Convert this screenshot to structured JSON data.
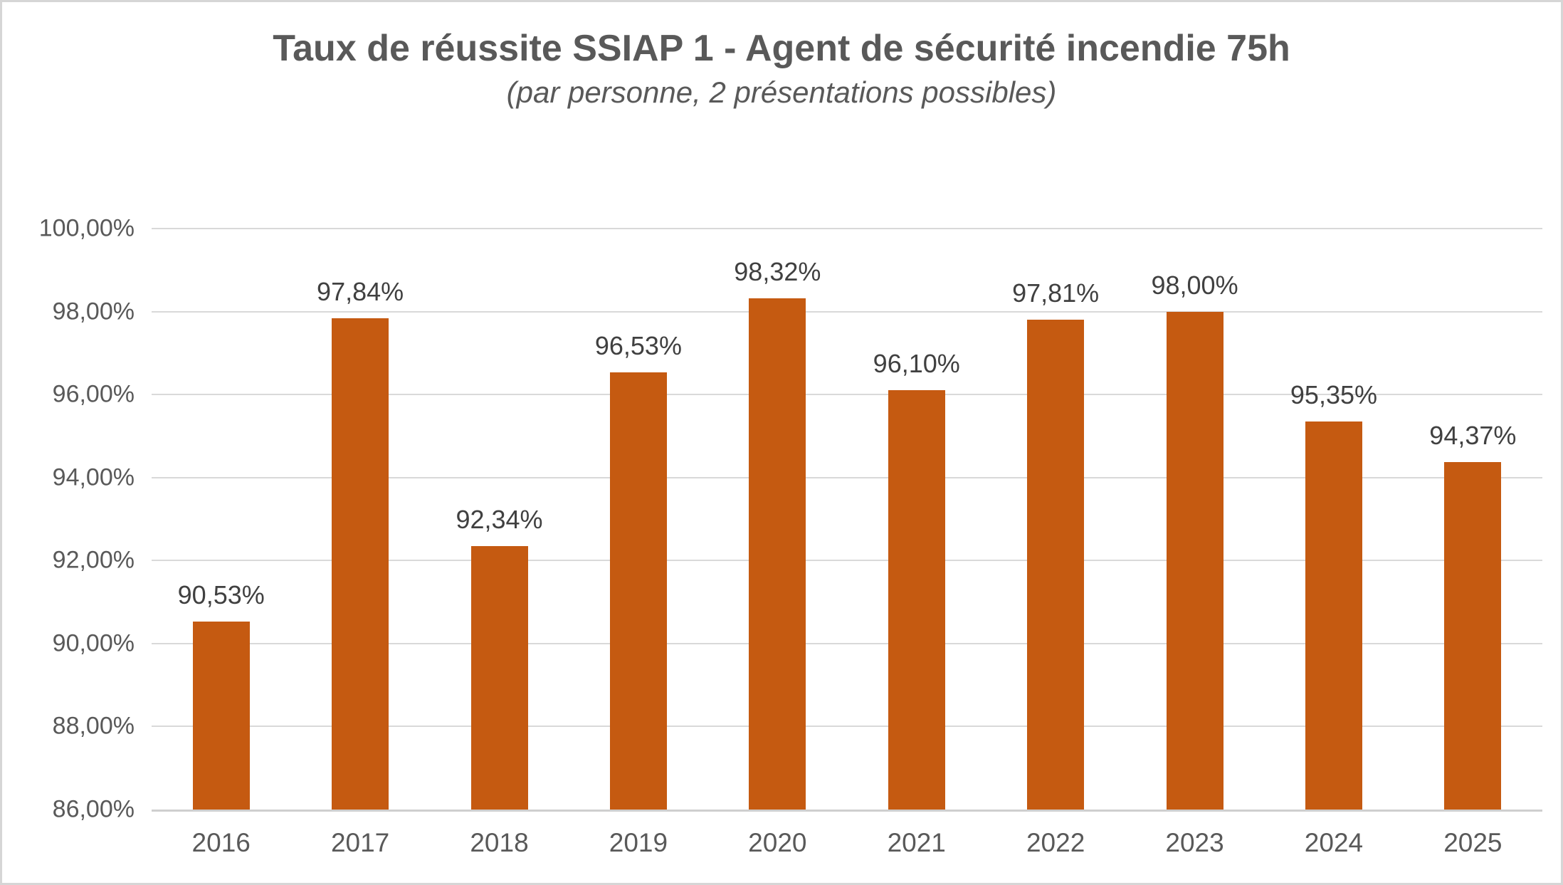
{
  "chart": {
    "title": "Taux de réussite SSIAP 1 - Agent de sécurité incendie 75h",
    "subtitle": "(par personne, 2 présentations possibles)"
  },
  "chart_data": {
    "type": "bar",
    "title": "Taux de réussite SSIAP 1 - Agent de sécurité incendie 75h",
    "subtitle": "(par personne, 2 présentations possibles)",
    "categories": [
      "2016",
      "2017",
      "2018",
      "2019",
      "2020",
      "2021",
      "2022",
      "2023",
      "2024",
      "2025"
    ],
    "values": [
      90.53,
      97.84,
      92.34,
      96.53,
      98.32,
      96.1,
      97.81,
      98.0,
      95.35,
      94.37
    ],
    "value_labels": [
      "90,53%",
      "97,84%",
      "92,34%",
      "96,53%",
      "98,32%",
      "96,10%",
      "97,81%",
      "98,00%",
      "95,35%",
      "94,37%"
    ],
    "xlabel": "",
    "ylabel": "",
    "ylim": [
      86,
      100
    ],
    "y_ticks": [
      {
        "value": 100,
        "label": "100,00%"
      },
      {
        "value": 98,
        "label": "98,00%"
      },
      {
        "value": 96,
        "label": "96,00%"
      },
      {
        "value": 94,
        "label": "94,00%"
      },
      {
        "value": 92,
        "label": "92,00%"
      },
      {
        "value": 90,
        "label": "90,00%"
      },
      {
        "value": 88,
        "label": "88,00%"
      },
      {
        "value": 86,
        "label": "86,00%"
      }
    ],
    "grid": true,
    "legend_position": "none",
    "style": {
      "bar_color": "#C55A11",
      "grid_color": "#D9D9D9",
      "baseline_color": "#CFCFCF",
      "title_color": "#595959",
      "tick_color": "#595959",
      "data_label_color": "#404040",
      "background": "#FFFFFF",
      "border_color": "#D6D6D6"
    }
  }
}
